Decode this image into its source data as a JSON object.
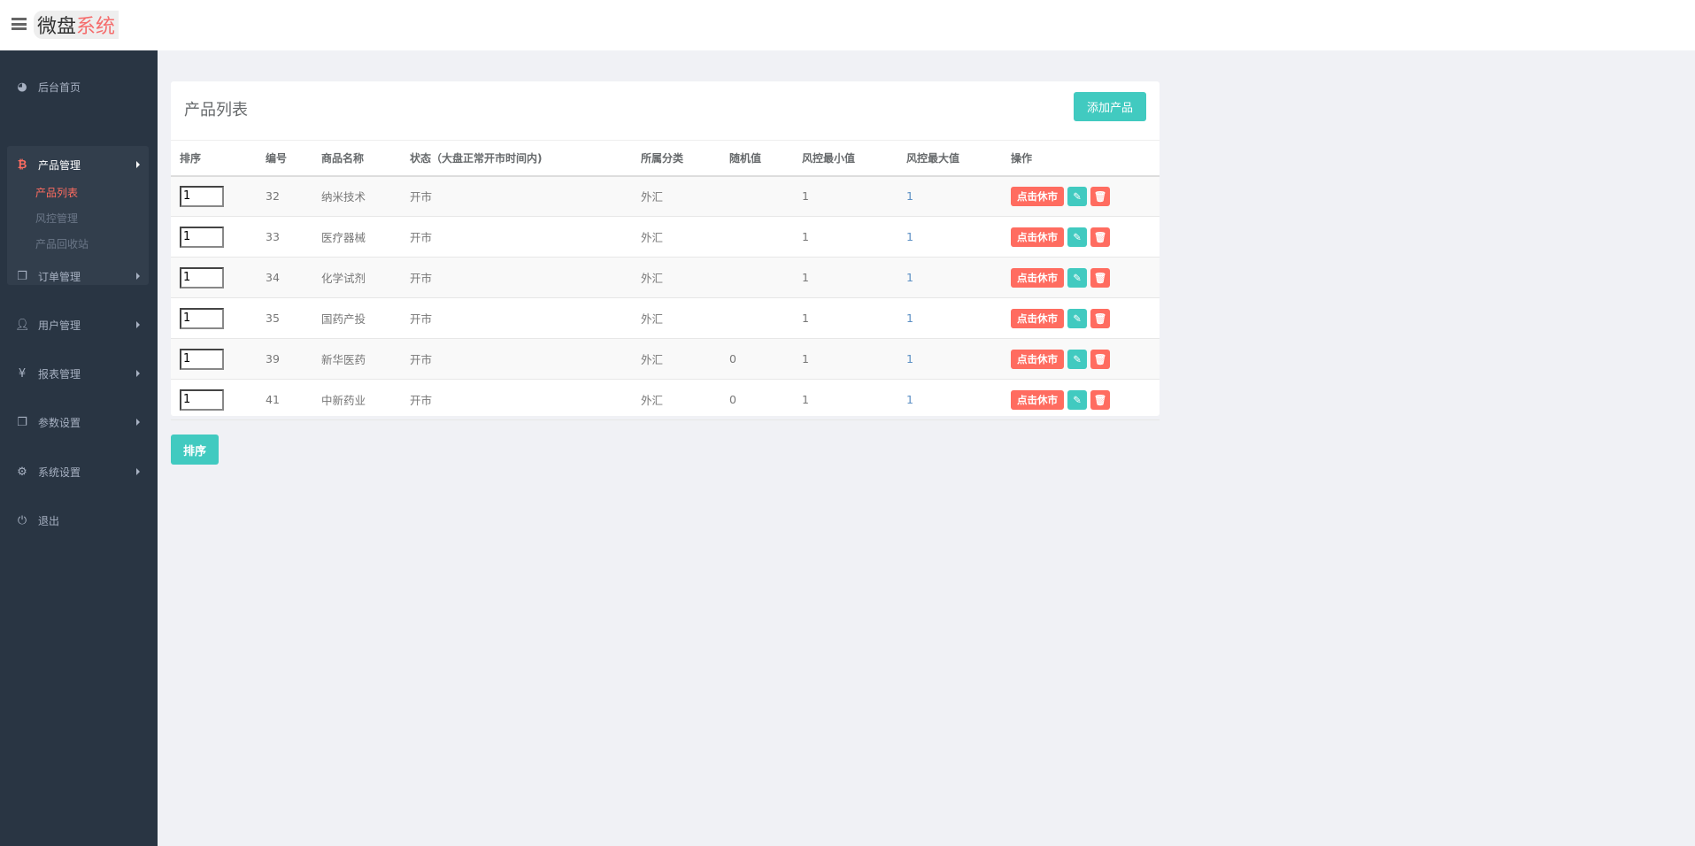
{
  "header": {
    "logo_part1": "微盘",
    "logo_part2": "系统"
  },
  "sidebar": {
    "items": [
      {
        "label": "后台首页",
        "icon": "dashboard-icon"
      },
      {
        "label": "产品管理",
        "icon": "bitcoin-icon",
        "expanded": true,
        "children": [
          "产品列表",
          "风控管理",
          "产品回收站"
        ],
        "active_child": "产品列表"
      },
      {
        "label": "订单管理",
        "icon": "copy-icon"
      },
      {
        "label": "用户管理",
        "icon": "user-icon"
      },
      {
        "label": "报表管理",
        "icon": "yen-icon"
      },
      {
        "label": "参数设置",
        "icon": "copy-icon"
      },
      {
        "label": "系统设置",
        "icon": "gears-icon"
      },
      {
        "label": "退出",
        "icon": "power-icon"
      }
    ]
  },
  "panel": {
    "title": "产品列表",
    "add_label": "添加产品"
  },
  "table": {
    "headers": [
      "排序",
      "编号",
      "商品名称",
      "状态（大盘正常开市时间内)",
      "所属分类",
      "随机值",
      "风控最小值",
      "风控最大值",
      "操作"
    ],
    "rows": [
      {
        "sort": "1",
        "id": "32",
        "name": "纳米技术",
        "status": "开市",
        "category": "外汇",
        "random": "",
        "min": "1",
        "max": "1"
      },
      {
        "sort": "1",
        "id": "33",
        "name": "医疗器械",
        "status": "开市",
        "category": "外汇",
        "random": "",
        "min": "1",
        "max": "1"
      },
      {
        "sort": "1",
        "id": "34",
        "name": "化学试剂",
        "status": "开市",
        "category": "外汇",
        "random": "",
        "min": "1",
        "max": "1"
      },
      {
        "sort": "1",
        "id": "35",
        "name": "国药产投",
        "status": "开市",
        "category": "外汇",
        "random": "",
        "min": "1",
        "max": "1"
      },
      {
        "sort": "1",
        "id": "39",
        "name": "新华医药",
        "status": "开市",
        "category": "外汇",
        "random": "0",
        "min": "1",
        "max": "1"
      },
      {
        "sort": "1",
        "id": "41",
        "name": "中新药业",
        "status": "开市",
        "category": "外汇",
        "random": "0",
        "min": "1",
        "max": "1"
      }
    ],
    "close_label": "点击休市"
  },
  "sort_button": "排序",
  "colors": {
    "accent": "#41cac0",
    "danger": "#ff6c60",
    "sidebar": "#293543"
  }
}
